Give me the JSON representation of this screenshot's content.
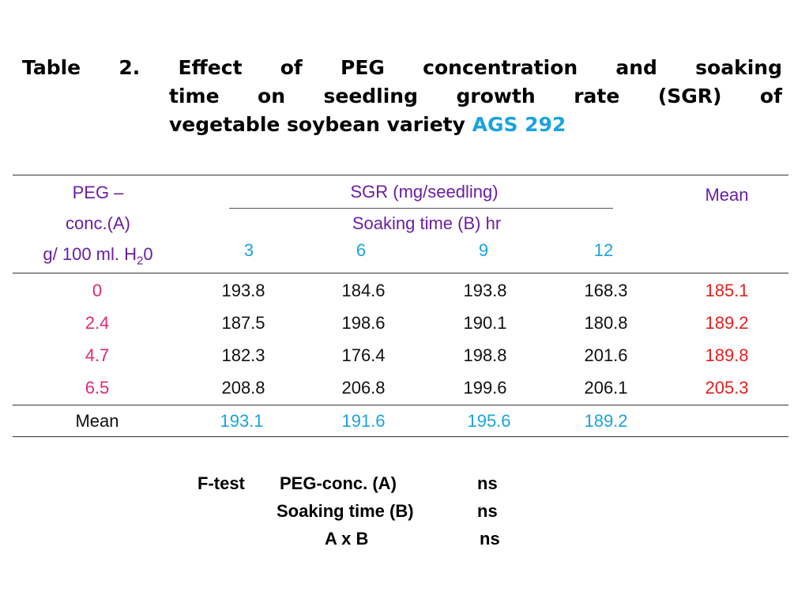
{
  "title": {
    "line1": "Table 2. Effect of PEG concentration and soaking",
    "line2": "time on seedling growth rate (SGR) of",
    "line3_main": "vegetable soybean variety ",
    "line3_accent": "AGS 292"
  },
  "table": {
    "peg_header": [
      "PEG –",
      "conc.(A)",
      "g/ 100 ml. H",
      "2",
      "0"
    ],
    "sgr_header": "SGR (mg/seedling)",
    "soaking_header": "Soaking time (B) hr",
    "soaking_times": [
      "3",
      "6",
      "9",
      "12"
    ],
    "mean_header": "Mean",
    "rows": [
      {
        "conc": "0",
        "values": [
          "193.8",
          "184.6",
          "193.8",
          "168.3"
        ],
        "mean": "185.1"
      },
      {
        "conc": "2.4",
        "values": [
          "187.5",
          "198.6",
          "190.1",
          "180.8"
        ],
        "mean": "189.2"
      },
      {
        "conc": "4.7",
        "values": [
          "182.3",
          "176.4",
          "198.8",
          "201.6"
        ],
        "mean": "189.8"
      },
      {
        "conc": "6.5",
        "values": [
          "208.8",
          "206.8",
          "199.6",
          "206.1"
        ],
        "mean": "205.3"
      }
    ],
    "mean_row": {
      "label": "Mean",
      "values": [
        "193.1",
        "191.6",
        "195.6",
        "189.2"
      ]
    }
  },
  "ftest": {
    "label": "F-test",
    "rows": [
      {
        "factor": "PEG-conc. (A)",
        "result": "ns"
      },
      {
        "factor": "Soaking time (B)",
        "result": "ns"
      },
      {
        "factor": "A x B",
        "result": "ns"
      }
    ]
  },
  "colors": {
    "header": "#6a1fa3",
    "accent_blue": "#1aa3e0",
    "conc_pink": "#e0287a",
    "mean_red": "#e61e1e"
  }
}
